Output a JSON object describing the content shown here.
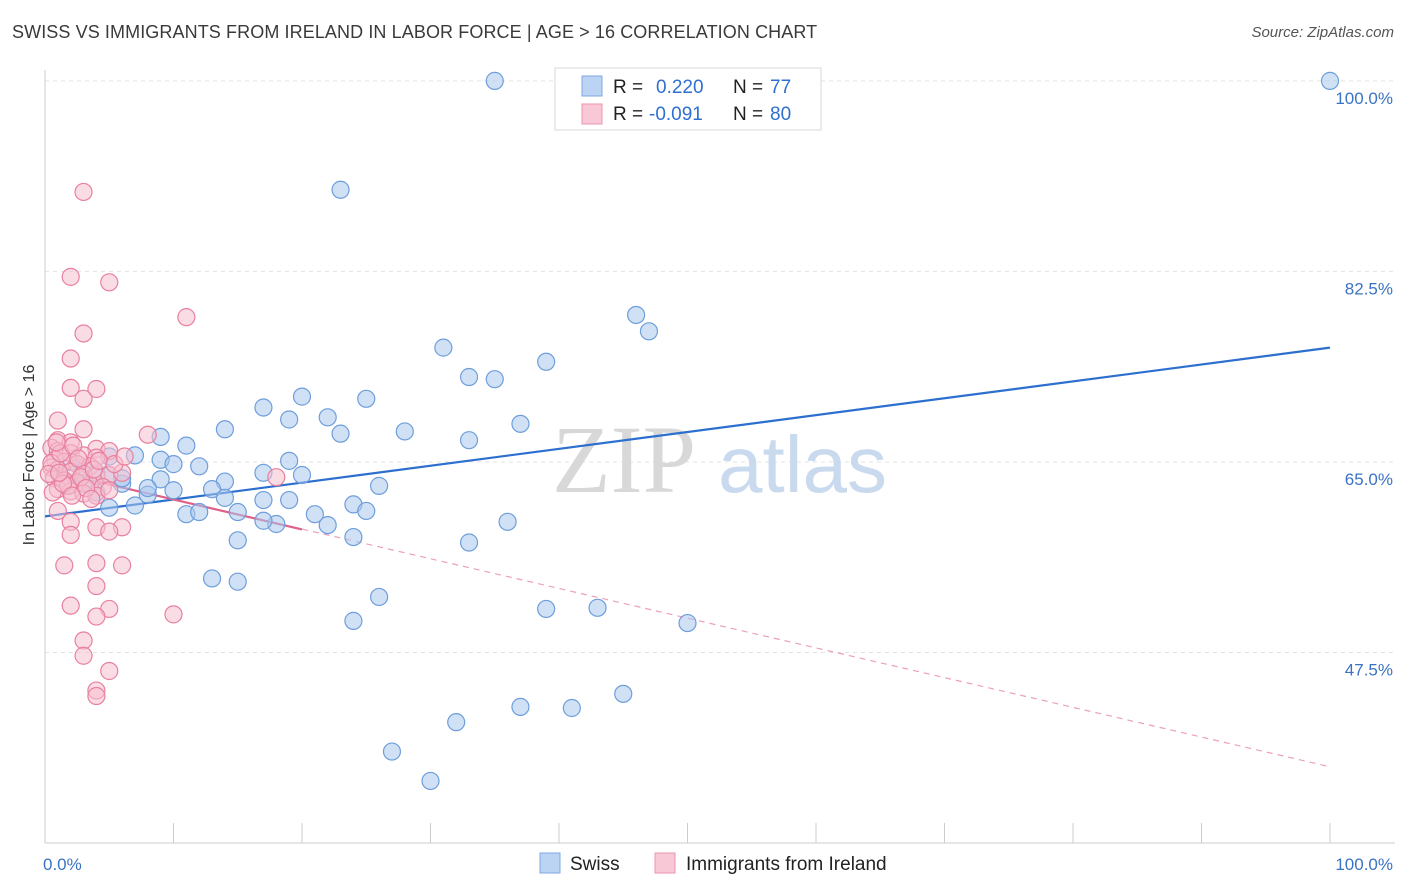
{
  "header": {
    "title": "SWISS VS IMMIGRANTS FROM IRELAND IN LABOR FORCE | AGE > 16 CORRELATION CHART",
    "source": "Source: ZipAtlas.com"
  },
  "watermark": {
    "zip": "ZIP",
    "atlas": "atlas"
  },
  "legend": {
    "r_label": "R =",
    "n_label": "N =",
    "rows": [
      {
        "r": "0.220",
        "n": "77"
      },
      {
        "r": "-0.091",
        "n": "80"
      }
    ]
  },
  "chart_data": {
    "type": "scatter",
    "title": "SWISS VS IMMIGRANTS FROM IRELAND IN LABOR FORCE | AGE > 16 CORRELATION CHART",
    "xlabel": "",
    "ylabel": "In Labor Force | Age > 16",
    "xlim": [
      0,
      100
    ],
    "ylim": [
      30,
      101
    ],
    "x_tick_labels": [
      "0.0%",
      "100.0%"
    ],
    "y_ticks": [
      47.5,
      65.0,
      82.5,
      100.0
    ],
    "y_tick_labels": [
      "47.5%",
      "65.0%",
      "82.5%",
      "100.0%"
    ],
    "grid": true,
    "legend_position": "top-center",
    "colors": {
      "swiss_fill": "#aac8ee",
      "swiss_stroke": "#6e9edb",
      "swiss_line": "#2c6fcf",
      "ireland_fill": "#f6bfd0",
      "ireland_stroke": "#e8809f",
      "ireland_line": "#e0608a"
    },
    "series": [
      {
        "name": "Swiss",
        "trend": {
          "x": [
            0,
            100
          ],
          "y": [
            60.0,
            75.5
          ]
        },
        "points": [
          [
            35,
            100.0
          ],
          [
            100,
            100.0
          ],
          [
            23,
            90.0
          ],
          [
            46,
            78.5
          ],
          [
            47,
            77.0
          ],
          [
            31,
            75.5
          ],
          [
            39,
            74.2
          ],
          [
            33,
            72.8
          ],
          [
            35,
            72.6
          ],
          [
            25,
            70.8
          ],
          [
            17,
            70.0
          ],
          [
            19,
            68.9
          ],
          [
            22,
            69.1
          ],
          [
            20,
            71.0
          ],
          [
            37,
            68.5
          ],
          [
            28,
            67.8
          ],
          [
            33,
            67.0
          ],
          [
            23,
            67.6
          ],
          [
            14,
            68.0
          ],
          [
            9,
            67.3
          ],
          [
            11,
            66.5
          ],
          [
            7,
            65.6
          ],
          [
            5,
            65.5
          ],
          [
            9,
            65.2
          ],
          [
            19,
            65.1
          ],
          [
            10,
            64.8
          ],
          [
            12,
            64.6
          ],
          [
            17,
            64.0
          ],
          [
            20,
            63.8
          ],
          [
            14,
            63.2
          ],
          [
            9,
            63.4
          ],
          [
            6,
            63.0
          ],
          [
            13,
            62.5
          ],
          [
            10,
            62.4
          ],
          [
            4,
            62.2
          ],
          [
            8,
            62.0
          ],
          [
            14,
            61.7
          ],
          [
            19,
            61.5
          ],
          [
            17,
            61.5
          ],
          [
            24,
            61.1
          ],
          [
            25,
            60.5
          ],
          [
            7,
            61.0
          ],
          [
            5,
            60.8
          ],
          [
            11,
            60.2
          ],
          [
            12,
            60.4
          ],
          [
            15,
            60.4
          ],
          [
            21,
            60.2
          ],
          [
            26,
            62.8
          ],
          [
            22,
            59.2
          ],
          [
            18,
            59.3
          ],
          [
            17,
            59.6
          ],
          [
            36,
            59.5
          ],
          [
            24,
            58.1
          ],
          [
            15,
            57.8
          ],
          [
            33,
            57.6
          ],
          [
            13,
            54.3
          ],
          [
            15,
            54.0
          ],
          [
            26,
            52.6
          ],
          [
            39,
            51.5
          ],
          [
            43,
            51.6
          ],
          [
            50,
            50.2
          ],
          [
            24,
            50.4
          ],
          [
            45,
            43.7
          ],
          [
            37,
            42.5
          ],
          [
            41,
            42.4
          ],
          [
            32,
            41.1
          ],
          [
            27,
            38.4
          ],
          [
            30,
            35.7
          ],
          [
            3,
            64.5
          ],
          [
            4,
            64.0
          ],
          [
            2,
            65.0
          ],
          [
            6,
            63.5
          ],
          [
            8,
            62.6
          ],
          [
            3,
            63.0
          ],
          [
            1,
            64.2
          ],
          [
            2,
            62.9
          ],
          [
            5,
            63.8
          ]
        ]
      },
      {
        "name": "Immigrants from Ireland",
        "trend": {
          "x": [
            0,
            20
          ],
          "y": [
            64.3,
            58.8
          ]
        },
        "trend_ext": {
          "x": [
            0,
            100
          ],
          "y": [
            64.3,
            37.0
          ]
        },
        "points": [
          [
            3,
            89.8
          ],
          [
            2,
            82.0
          ],
          [
            5,
            81.5
          ],
          [
            11,
            78.3
          ],
          [
            3,
            76.8
          ],
          [
            2,
            74.5
          ],
          [
            2,
            71.8
          ],
          [
            4,
            71.7
          ],
          [
            3,
            70.8
          ],
          [
            1,
            68.8
          ],
          [
            8,
            67.5
          ],
          [
            3,
            68.0
          ],
          [
            1,
            67.0
          ],
          [
            2,
            66.8
          ],
          [
            4,
            66.2
          ],
          [
            5,
            66.0
          ],
          [
            0.5,
            66.3
          ],
          [
            1,
            66.0
          ],
          [
            2,
            65.8
          ],
          [
            3,
            65.6
          ],
          [
            4,
            65.4
          ],
          [
            0.8,
            65.2
          ],
          [
            1.5,
            65.0
          ],
          [
            2.5,
            64.8
          ],
          [
            3.5,
            64.6
          ],
          [
            0.5,
            64.5
          ],
          [
            1,
            64.3
          ],
          [
            2,
            64.1
          ],
          [
            3,
            63.9
          ],
          [
            4,
            63.7
          ],
          [
            5,
            63.8
          ],
          [
            0.7,
            63.5
          ],
          [
            1.5,
            63.3
          ],
          [
            2.5,
            63.1
          ],
          [
            3.5,
            62.9
          ],
          [
            4.5,
            62.7
          ],
          [
            1,
            62.5
          ],
          [
            2,
            62.3
          ],
          [
            3,
            62.1
          ],
          [
            4,
            61.9
          ],
          [
            18,
            63.6
          ],
          [
            5,
            62.4
          ],
          [
            6,
            64.0
          ],
          [
            1,
            60.5
          ],
          [
            2,
            59.5
          ],
          [
            4,
            59.0
          ],
          [
            6,
            59.0
          ],
          [
            2,
            58.3
          ],
          [
            5,
            58.6
          ],
          [
            1.5,
            55.5
          ],
          [
            6,
            55.5
          ],
          [
            4,
            55.7
          ],
          [
            4,
            53.6
          ],
          [
            2,
            51.8
          ],
          [
            5,
            51.5
          ],
          [
            10,
            51.0
          ],
          [
            4,
            50.8
          ],
          [
            3,
            48.6
          ],
          [
            3,
            47.2
          ],
          [
            5,
            45.8
          ],
          [
            4,
            44.0
          ],
          [
            4,
            43.5
          ],
          [
            0.5,
            64.9
          ],
          [
            1.2,
            65.8
          ],
          [
            2.2,
            66.5
          ],
          [
            0.3,
            63.9
          ],
          [
            1.8,
            62.8
          ],
          [
            2.8,
            63.6
          ],
          [
            3.8,
            64.3
          ],
          [
            0.9,
            66.8
          ],
          [
            2.6,
            65.3
          ],
          [
            3.2,
            62.6
          ],
          [
            0.6,
            62.2
          ],
          [
            1.4,
            63.0
          ],
          [
            4.2,
            65.1
          ],
          [
            5.4,
            64.8
          ],
          [
            6.2,
            65.5
          ],
          [
            3.6,
            61.6
          ],
          [
            2.1,
            61.9
          ],
          [
            1.1,
            64.0
          ]
        ]
      }
    ]
  }
}
